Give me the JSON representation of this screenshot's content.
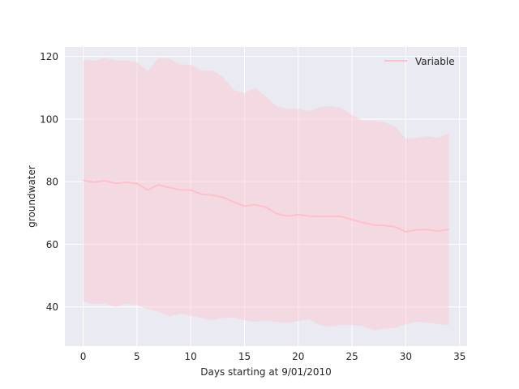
{
  "chart_data": {
    "type": "line",
    "title": "",
    "xlabel": "Days starting at 9/01/2010",
    "ylabel": "groundwater",
    "xlim": [
      -1.7,
      35.7
    ],
    "ylim": [
      27.5,
      123
    ],
    "xticks": [
      0,
      5,
      10,
      15,
      20,
      25,
      30,
      35
    ],
    "yticks": [
      40,
      60,
      80,
      100,
      120
    ],
    "grid": true,
    "legend_position": "top-right",
    "series": [
      {
        "name": "Variable",
        "x": [
          0,
          1,
          2,
          3,
          4,
          5,
          6,
          7,
          8,
          9,
          10,
          11,
          12,
          13,
          14,
          15,
          16,
          17,
          18,
          19,
          20,
          21,
          22,
          23,
          24,
          25,
          26,
          27,
          28,
          29,
          30,
          31,
          32,
          33,
          34
        ],
        "values": [
          80.4,
          79.8,
          80.3,
          79.5,
          79.8,
          79.4,
          77.3,
          79.0,
          78.1,
          77.4,
          77.3,
          76.0,
          75.7,
          75.0,
          73.5,
          72.2,
          72.6,
          71.8,
          69.8,
          69.0,
          69.5,
          69.0,
          68.9,
          68.9,
          68.9,
          67.9,
          66.9,
          66.2,
          66.0,
          65.6,
          64.0,
          64.6,
          64.7,
          64.2,
          64.8
        ],
        "upper": [
          119.0,
          118.5,
          119.5,
          118.7,
          118.7,
          118.2,
          115.3,
          119.5,
          119.3,
          117.4,
          117.4,
          115.5,
          115.5,
          113.5,
          109.3,
          108.3,
          110.0,
          107.2,
          104.0,
          103.3,
          103.3,
          102.5,
          103.8,
          104.2,
          103.5,
          101.3,
          99.5,
          99.5,
          99.0,
          97.5,
          93.8,
          94.0,
          94.5,
          94.0,
          95.5
        ],
        "lower": [
          41.7,
          40.9,
          41.0,
          40.0,
          41.0,
          40.5,
          39.3,
          38.5,
          37.0,
          37.8,
          37.2,
          36.5,
          35.8,
          36.5,
          36.6,
          35.7,
          35.2,
          35.7,
          35.2,
          34.8,
          35.5,
          36.0,
          34.2,
          33.7,
          34.3,
          34.2,
          33.8,
          32.5,
          33.0,
          33.4,
          34.5,
          35.3,
          35.0,
          34.5,
          34.2
        ],
        "color": "#ffc0cb",
        "band_color": "#ffc0cb"
      }
    ]
  },
  "style": {
    "plot_background": "#eaeaf2",
    "grid_color": "#ffffff",
    "text_color": "#262626"
  }
}
